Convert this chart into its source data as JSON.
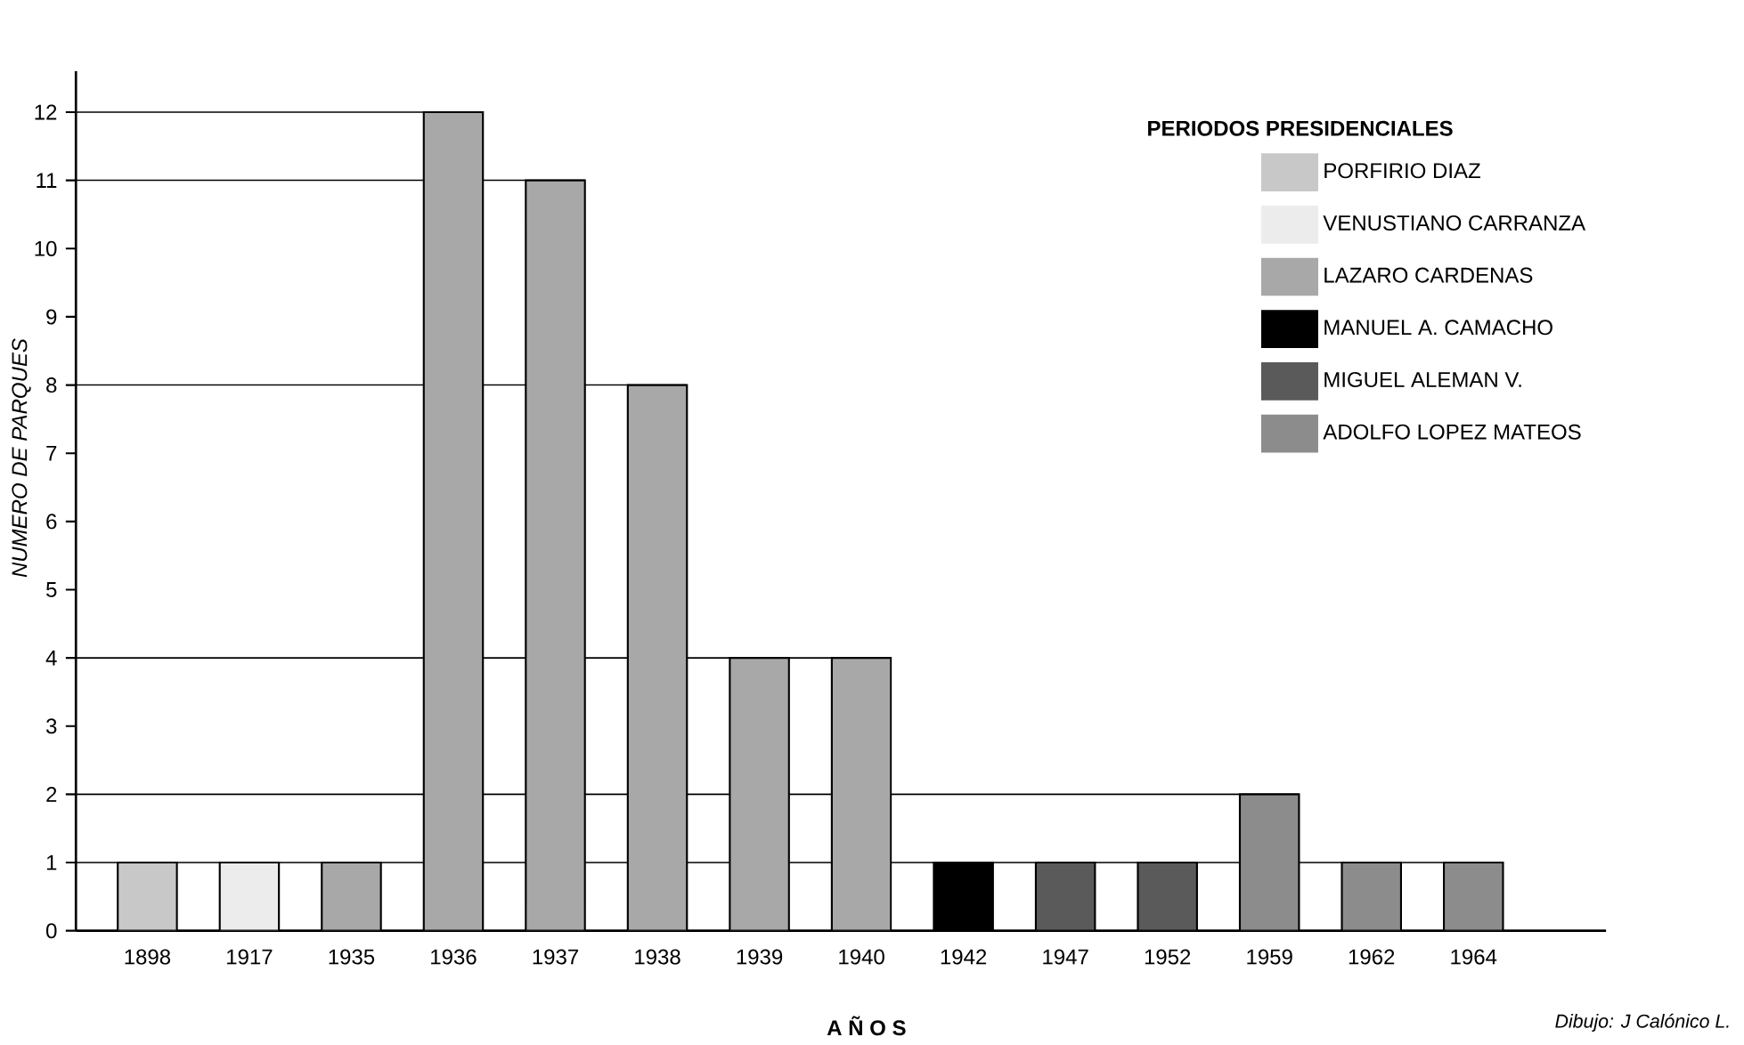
{
  "chart_data": {
    "type": "bar",
    "categories": [
      "1898",
      "1917",
      "1935",
      "1936",
      "1937",
      "1938",
      "1939",
      "1940",
      "1942",
      "1947",
      "1952",
      "1959",
      "1962",
      "1964"
    ],
    "series": [
      {
        "name": "PORFIRIO DIAZ",
        "color": "#c8c8c8",
        "values": [
          1,
          null,
          null,
          null,
          null,
          null,
          null,
          null,
          null,
          null,
          null,
          null,
          null,
          null
        ]
      },
      {
        "name": "VENUSTIANO CARRANZA",
        "color": "#ececec",
        "values": [
          null,
          1,
          null,
          null,
          null,
          null,
          null,
          null,
          null,
          null,
          null,
          null,
          null,
          null
        ]
      },
      {
        "name": "LAZARO CARDENAS",
        "color": "#a8a8a8",
        "values": [
          null,
          null,
          1,
          12,
          11,
          8,
          4,
          4,
          null,
          null,
          null,
          null,
          null,
          null
        ]
      },
      {
        "name": "MANUEL A. CAMACHO",
        "color": "#000000",
        "values": [
          null,
          null,
          null,
          null,
          null,
          null,
          null,
          null,
          1,
          null,
          null,
          null,
          null,
          null
        ]
      },
      {
        "name": "MIGUEL ALEMAN V.",
        "color": "#5a5a5a",
        "values": [
          null,
          null,
          null,
          null,
          null,
          null,
          null,
          null,
          null,
          1,
          1,
          null,
          null,
          null
        ]
      },
      {
        "name": "ADOLFO LOPEZ MATEOS",
        "color": "#8c8c8c",
        "values": [
          null,
          null,
          null,
          null,
          null,
          null,
          null,
          null,
          null,
          null,
          null,
          2,
          1,
          1
        ]
      }
    ],
    "ref_lines": [
      {
        "axis": "y",
        "value": 1
      },
      {
        "axis": "y",
        "value": 2
      },
      {
        "axis": "y",
        "value": 4
      },
      {
        "axis": "y",
        "value": 8
      },
      {
        "axis": "y",
        "value": 11
      },
      {
        "axis": "y",
        "value": 12
      }
    ],
    "ylim": [
      0,
      12.6
    ],
    "yticks": [
      0,
      1,
      2,
      3,
      4,
      5,
      6,
      7,
      8,
      9,
      10,
      11,
      12
    ],
    "xlabel": "A Ñ O S",
    "ylabel": "NUMERO DE PARQUES",
    "legend_title": "PERIODOS PRESIDENCIALES",
    "legend": "top right",
    "annotations": [
      "Dibujo: J Calónico L."
    ]
  }
}
